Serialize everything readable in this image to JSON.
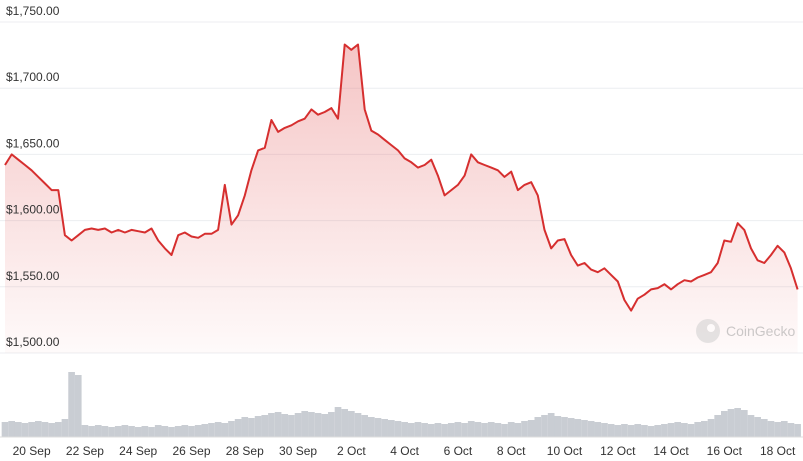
{
  "chart_data": {
    "type": "line",
    "watermark": "CoinGecko",
    "categories": [
      null,
      null,
      null,
      null,
      "20 Sep",
      null,
      null,
      null,
      null,
      null,
      null,
      null,
      "22 Sep",
      null,
      null,
      null,
      null,
      null,
      null,
      null,
      "24 Sep",
      null,
      null,
      null,
      null,
      null,
      null,
      null,
      "26 Sep",
      null,
      null,
      null,
      null,
      null,
      null,
      null,
      "28 Sep",
      null,
      null,
      null,
      null,
      null,
      null,
      null,
      "30 Sep",
      null,
      null,
      null,
      null,
      null,
      null,
      null,
      "2 Oct",
      null,
      null,
      null,
      null,
      null,
      null,
      null,
      "4 Oct",
      null,
      null,
      null,
      null,
      null,
      null,
      null,
      "6 Oct",
      null,
      null,
      null,
      null,
      null,
      null,
      null,
      "8 Oct",
      null,
      null,
      null,
      null,
      null,
      null,
      null,
      "10 Oct",
      null,
      null,
      null,
      null,
      null,
      null,
      null,
      "12 Oct",
      null,
      null,
      null,
      null,
      null,
      null,
      null,
      "14 Oct",
      null,
      null,
      null,
      null,
      null,
      null,
      null,
      "16 Oct",
      null,
      null,
      null,
      null,
      null,
      null,
      null,
      "18 Oct",
      null,
      null,
      null
    ],
    "series": [
      {
        "color": "#d62f2f",
        "values": [
          1642,
          1650,
          1646,
          1642,
          1638,
          1633,
          1628,
          1623,
          1623,
          1589,
          1585,
          1589,
          1593,
          1594,
          1593,
          1594,
          1591,
          1593,
          1591,
          1593,
          1592,
          1591,
          1594,
          1585,
          1579,
          1574,
          1589,
          1591,
          1588,
          1587,
          1590,
          1590,
          1593,
          1627,
          1597,
          1604,
          1619,
          1638,
          1653,
          1655,
          1676,
          1667,
          1670,
          1672,
          1675,
          1677,
          1684,
          1680,
          1682,
          1685,
          1677,
          1733,
          1729,
          1733,
          1684,
          1668,
          1665,
          1661,
          1657,
          1653,
          1647,
          1644,
          1640,
          1642,
          1646,
          1634,
          1619,
          1623,
          1627,
          1634,
          1650,
          1644,
          1642,
          1640,
          1638,
          1633,
          1637,
          1623,
          1627,
          1629,
          1619,
          1593,
          1579,
          1585,
          1586,
          1574,
          1566,
          1568,
          1563,
          1561,
          1564,
          1559,
          1554,
          1540,
          1532,
          1541,
          1544,
          1548,
          1549,
          1552,
          1548,
          1552,
          1555,
          1554,
          1557,
          1559,
          1561,
          1568,
          1585,
          1584,
          1598,
          1593,
          1579,
          1570,
          1568,
          1574,
          1581,
          1576,
          1564,
          1548
        ]
      },
      {
        "color": "#c9cdd3",
        "axis": "y2",
        "values": [
          15,
          16,
          15,
          14,
          15,
          16,
          15,
          14,
          15,
          18,
          65,
          62,
          12,
          11,
          12,
          11,
          10,
          11,
          12,
          11,
          10,
          11,
          10,
          12,
          11,
          10,
          11,
          12,
          11,
          12,
          13,
          14,
          15,
          14,
          16,
          18,
          20,
          19,
          21,
          22,
          24,
          25,
          23,
          22,
          24,
          26,
          25,
          24,
          23,
          25,
          30,
          28,
          26,
          24,
          22,
          20,
          19,
          18,
          17,
          16,
          15,
          14,
          15,
          14,
          13,
          14,
          13,
          14,
          15,
          14,
          16,
          15,
          14,
          15,
          14,
          13,
          15,
          14,
          16,
          17,
          20,
          22,
          24,
          21,
          20,
          19,
          18,
          17,
          16,
          15,
          14,
          13,
          12,
          13,
          12,
          13,
          12,
          11,
          12,
          13,
          14,
          15,
          14,
          13,
          15,
          16,
          18,
          22,
          26,
          28,
          29,
          27,
          22,
          20,
          18,
          16,
          15,
          16,
          14,
          13
        ]
      }
    ],
    "ylim": [
      1500,
      1750
    ],
    "yticks": [
      {
        "value": 1500,
        "label": "$1,500.00"
      },
      {
        "value": 1550,
        "label": "$1,550.00"
      },
      {
        "value": 1600,
        "label": "$1,600.00"
      },
      {
        "value": 1650,
        "label": "$1,650.00"
      },
      {
        "value": 1700,
        "label": "$1,700.00"
      },
      {
        "value": 1750,
        "label": "$1,750.00"
      }
    ],
    "y2lim": [
      0,
      100
    ],
    "grid": true
  }
}
